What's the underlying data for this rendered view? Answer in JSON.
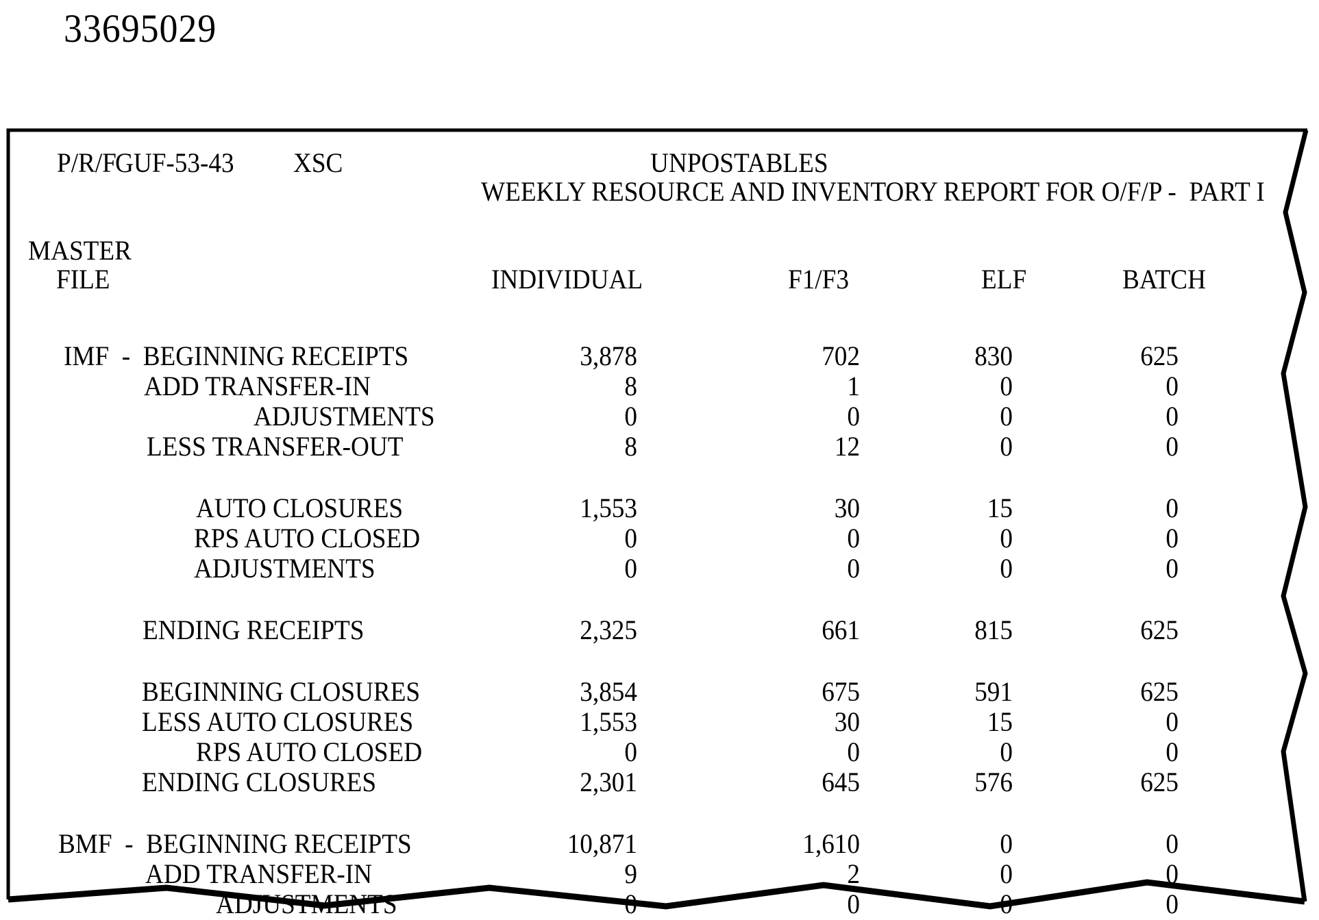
{
  "stamp": "33695029",
  "report": {
    "ref_line": {
      "prf": "P/R/F",
      "code": "GUF-53-43",
      "xsc": "XSC"
    },
    "title1": "UNPOSTABLES",
    "title2": "WEEKLY RESOURCE AND INVENTORY REPORT FOR O/F/P -  PART I",
    "row_header": {
      "line1": "MASTER",
      "line2": "FILE"
    },
    "columns": [
      "INDIVIDUAL",
      "F1/F3",
      "ELF",
      "BATCH"
    ],
    "groups": [
      {
        "rows": [
          {
            "label": "IMF  -  BEGINNING RECEIPTS",
            "indent": 93,
            "values": [
              "3,878",
              "702",
              "830",
              "625"
            ]
          },
          {
            "label": "ADD TRANSFER-IN",
            "indent": 210,
            "values": [
              "8",
              "1",
              "0",
              "0"
            ]
          },
          {
            "label": "ADJUSTMENTS",
            "indent": 370,
            "values": [
              "0",
              "0",
              "0",
              "0"
            ]
          },
          {
            "label": "LESS TRANSFER-OUT",
            "indent": 214,
            "values": [
              "8",
              "12",
              "0",
              "0"
            ]
          }
        ]
      },
      {
        "rows": [
          {
            "label": "AUTO CLOSURES",
            "indent": 286,
            "values": [
              "1,553",
              "30",
              "15",
              "0"
            ]
          },
          {
            "label": "RPS AUTO CLOSED",
            "indent": 283,
            "values": [
              "0",
              "0",
              "0",
              "0"
            ]
          },
          {
            "label": "ADJUSTMENTS",
            "indent": 283,
            "values": [
              "0",
              "0",
              "0",
              "0"
            ]
          }
        ]
      },
      {
        "rows": [
          {
            "label": "ENDING RECEIPTS",
            "indent": 208,
            "values": [
              "2,325",
              "661",
              "815",
              "625"
            ]
          }
        ]
      },
      {
        "rows": [
          {
            "label": "BEGINNING CLOSURES",
            "indent": 207,
            "values": [
              "3,854",
              "675",
              "591",
              "625"
            ]
          },
          {
            "label": "LESS AUTO CLOSURES",
            "indent": 207,
            "values": [
              "1,553",
              "30",
              "15",
              "0"
            ]
          },
          {
            "label": "RPS AUTO CLOSED",
            "indent": 286,
            "values": [
              "0",
              "0",
              "0",
              "0"
            ]
          },
          {
            "label": "ENDING CLOSURES",
            "indent": 207,
            "values": [
              "2,301",
              "645",
              "576",
              "625"
            ]
          }
        ]
      },
      {
        "rows": [
          {
            "label": "BMF  -  BEGINNING RECEIPTS",
            "indent": 85,
            "values": [
              "10,871",
              "1,610",
              "0",
              "0"
            ]
          },
          {
            "label": "ADD TRANSFER-IN",
            "indent": 212,
            "values": [
              "9",
              "2",
              "0",
              "0"
            ]
          },
          {
            "label": "ADJUSTMENTS",
            "indent": 315,
            "values": [
              "0",
              "0",
              "0",
              "0"
            ]
          }
        ]
      }
    ]
  }
}
